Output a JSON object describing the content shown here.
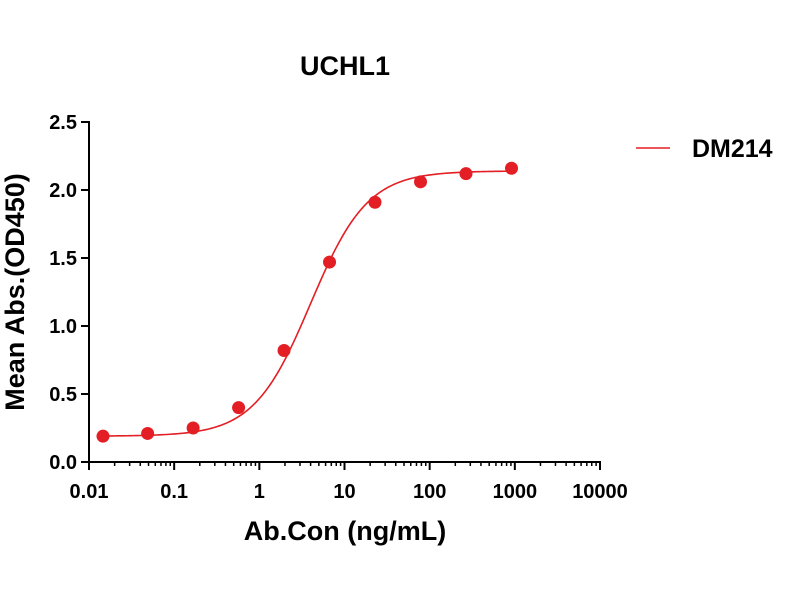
{
  "chart_data": {
    "type": "scatter",
    "title": "UCHL1",
    "xlabel": "Ab.Con (ng/mL)",
    "ylabel": "Mean Abs.(OD450)",
    "x_scale": "log",
    "xlim": [
      0.01,
      10000
    ],
    "ylim": [
      0,
      2.5
    ],
    "x_ticks": [
      "0.01",
      "0.1",
      "1",
      "10",
      "100",
      "1000",
      "10000"
    ],
    "x_tick_values": [
      0.01,
      0.1,
      1,
      10,
      100,
      1000,
      10000
    ],
    "y_ticks": [
      "0.0",
      "0.5",
      "1.0",
      "1.5",
      "2.0",
      "2.5"
    ],
    "y_tick_values": [
      0,
      0.5,
      1.0,
      1.5,
      2.0,
      2.5
    ],
    "legend_position": "top-right",
    "grid": false,
    "series": [
      {
        "name": "DM214",
        "color": "#e31e24",
        "x": [
          0.0146,
          0.0488,
          0.167,
          0.571,
          1.95,
          6.67,
          22.8,
          78.1,
          267,
          914
        ],
        "y": [
          0.19,
          0.21,
          0.25,
          0.4,
          0.82,
          1.47,
          1.91,
          2.06,
          2.12,
          2.16
        ],
        "fit": "4PL",
        "fit_params": {
          "bottom": 0.19,
          "top": 2.14,
          "ec50": 4.0,
          "hill": 1.3
        }
      }
    ]
  }
}
